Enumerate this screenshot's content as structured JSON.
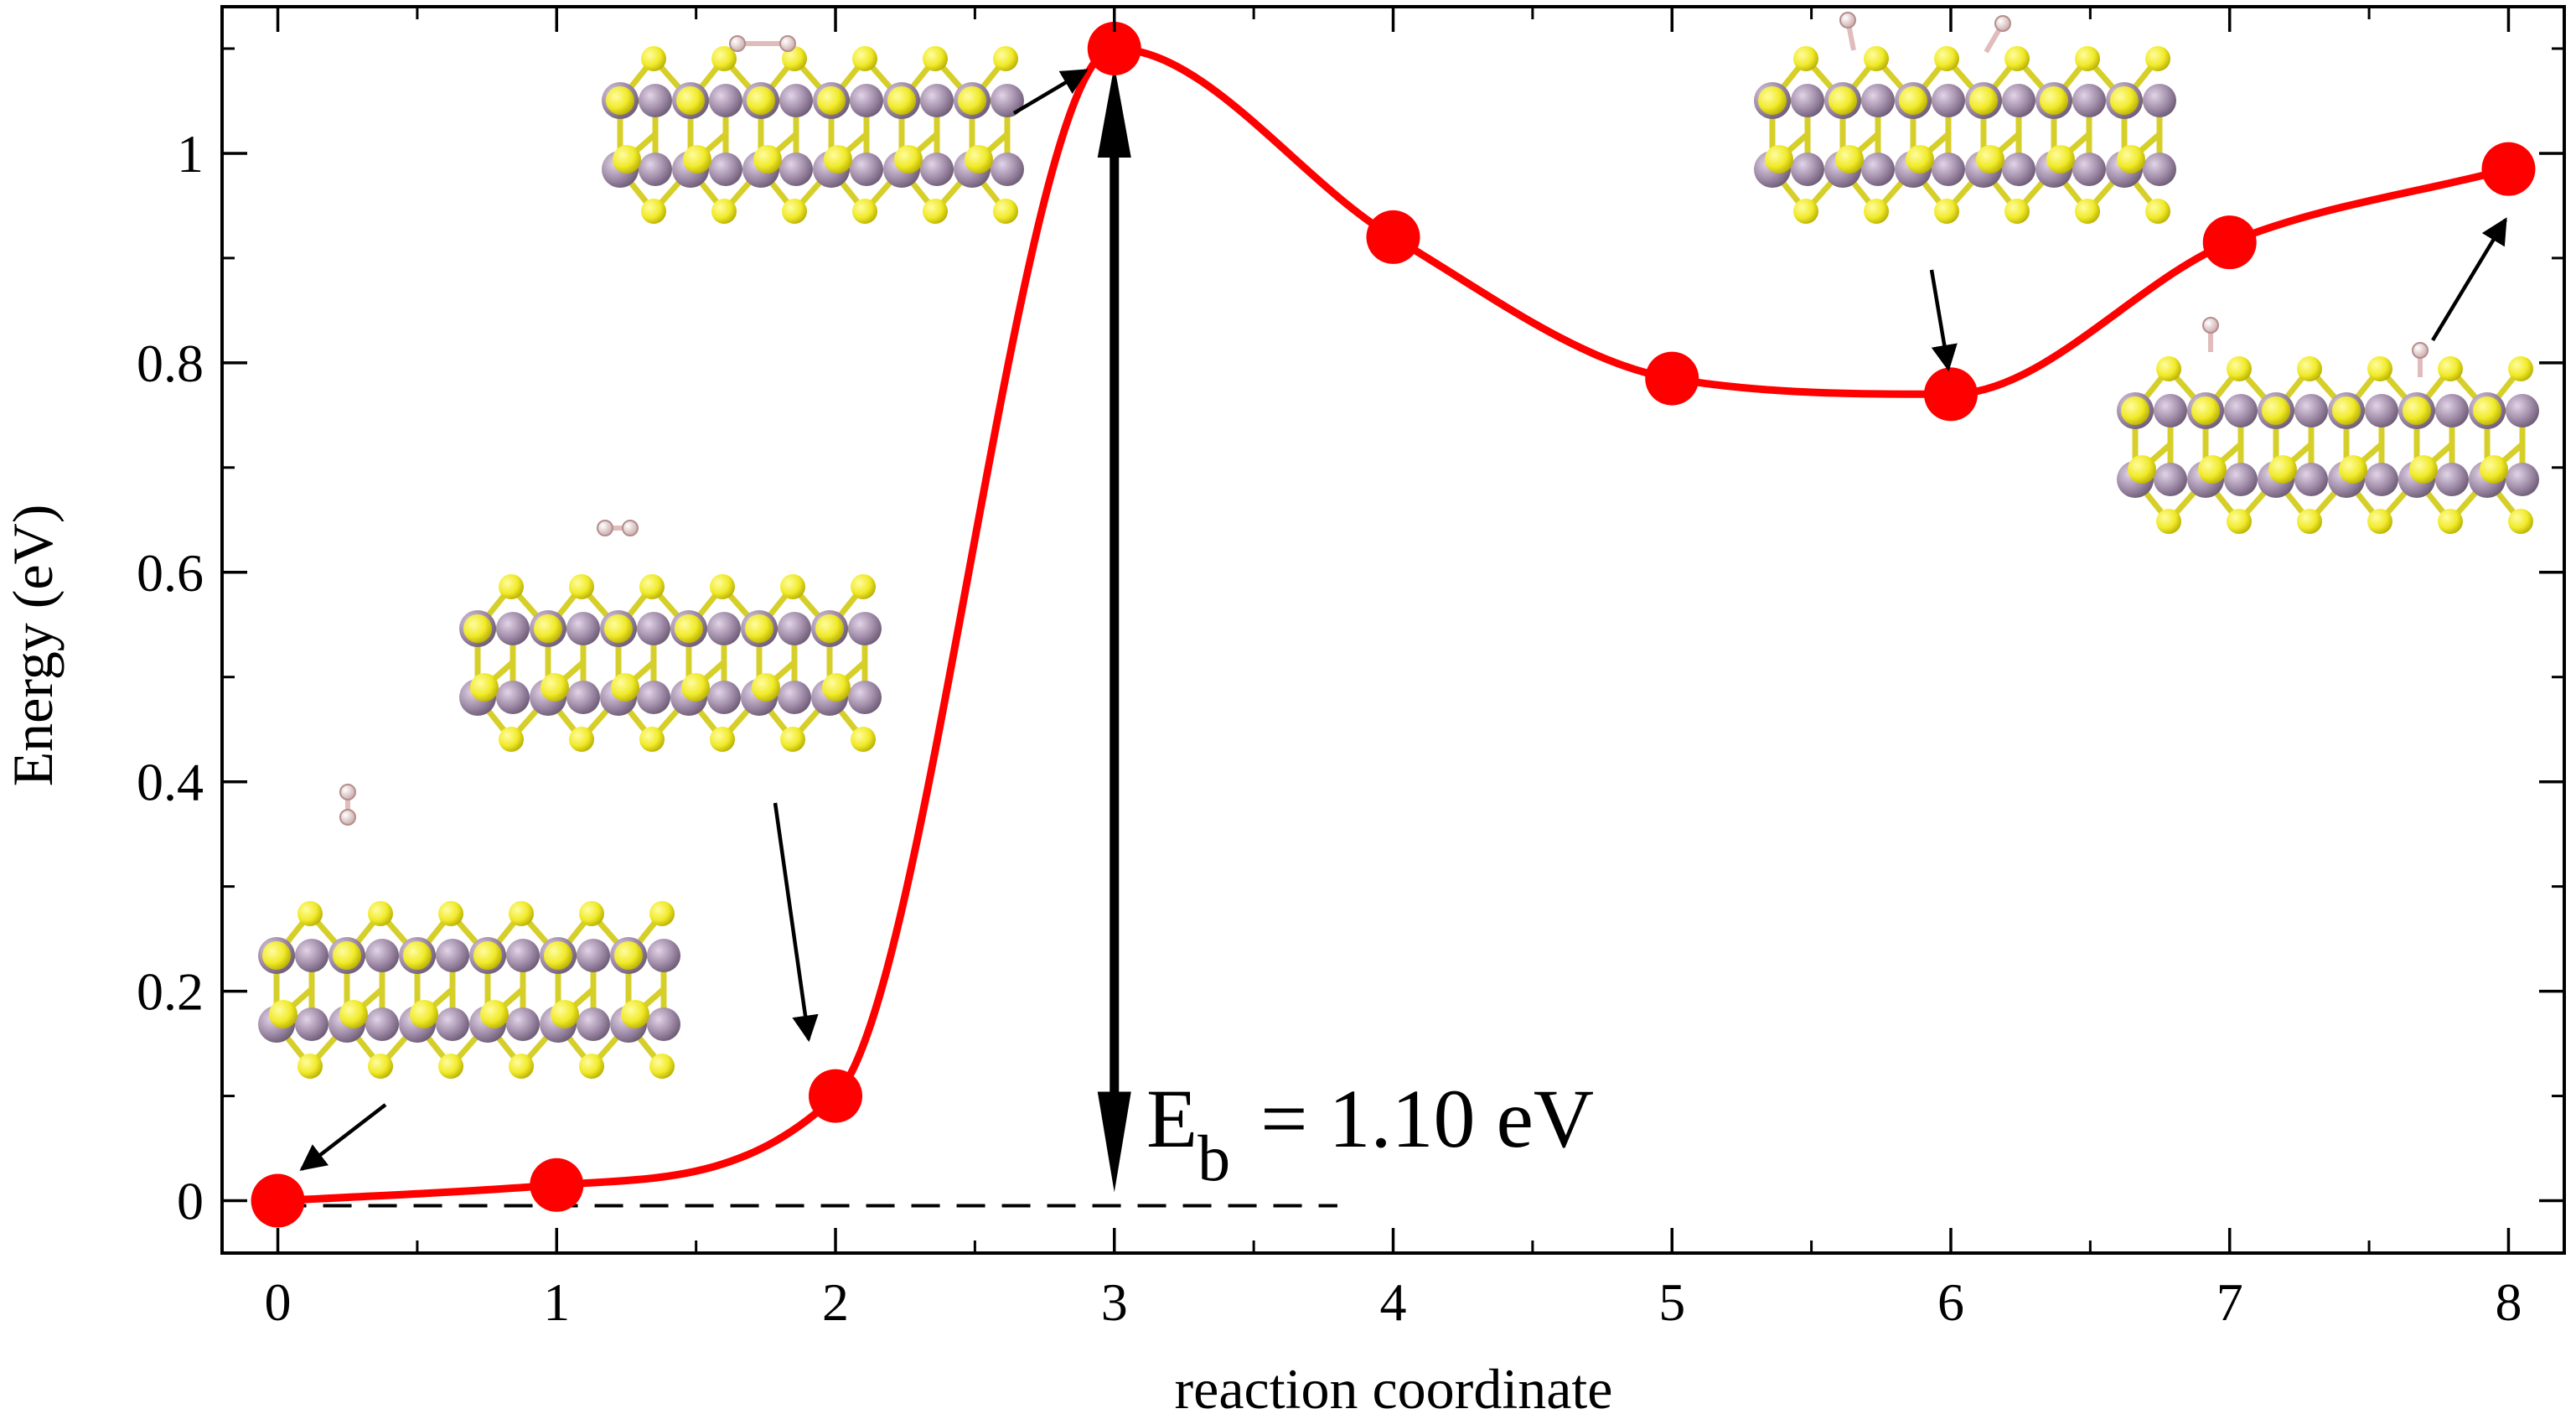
{
  "chart_data": {
    "type": "line",
    "title": "",
    "xlabel": "reaction coordinate",
    "ylabel": "Energy (eV)",
    "xlim": [
      -0.2,
      8.2
    ],
    "ylim": [
      -0.05,
      1.14
    ],
    "x_ticks": [
      0,
      1,
      2,
      3,
      4,
      5,
      6,
      7,
      8
    ],
    "x_tick_labels": [
      "0",
      "1",
      "2",
      "3",
      "4",
      "5",
      "6",
      "7",
      "8"
    ],
    "y_ticks": [
      0,
      0.2,
      0.4,
      0.6,
      0.8,
      1.0
    ],
    "y_tick_labels": [
      "0",
      "0.2",
      "0.4",
      "0.6",
      "0.8",
      "1"
    ],
    "grid": false,
    "legend": "none",
    "series": [
      {
        "x": [
          0,
          1,
          2,
          3,
          4,
          5,
          6,
          7,
          8
        ],
        "y": [
          0.0,
          0.015,
          0.1,
          1.1,
          0.92,
          0.785,
          0.77,
          0.915,
          0.985
        ],
        "color": "#ff0000",
        "marker": "circle",
        "curve": "smooth"
      }
    ],
    "reference_line": {
      "y": 0.0,
      "x_range": [
        0,
        3.8
      ],
      "style": "dashed",
      "color": "#000000"
    },
    "barrier_arrow": {
      "x": 3,
      "from_y": 0.0,
      "to_y": 1.1
    },
    "annotations": [
      {
        "text": "E",
        "subscript": "b",
        "value": "= 1.10 eV"
      }
    ]
  },
  "colors": {
    "curve": "#ff0000",
    "sulfur": "#f0ea2a",
    "metal": "#a08ca8",
    "hydrogen": "#e8cccc",
    "axis": "#000000"
  },
  "insets": [
    {
      "name": "structure-state-0",
      "molecule": "H2 above sheet"
    },
    {
      "name": "structure-state-2",
      "molecule": "H2 lying flat above sheet"
    },
    {
      "name": "structure-state-3",
      "molecule": "H2 dissociating"
    },
    {
      "name": "structure-state-6",
      "molecule": "H atoms bonded"
    },
    {
      "name": "structure-state-8",
      "molecule": "H atoms bonded"
    }
  ]
}
